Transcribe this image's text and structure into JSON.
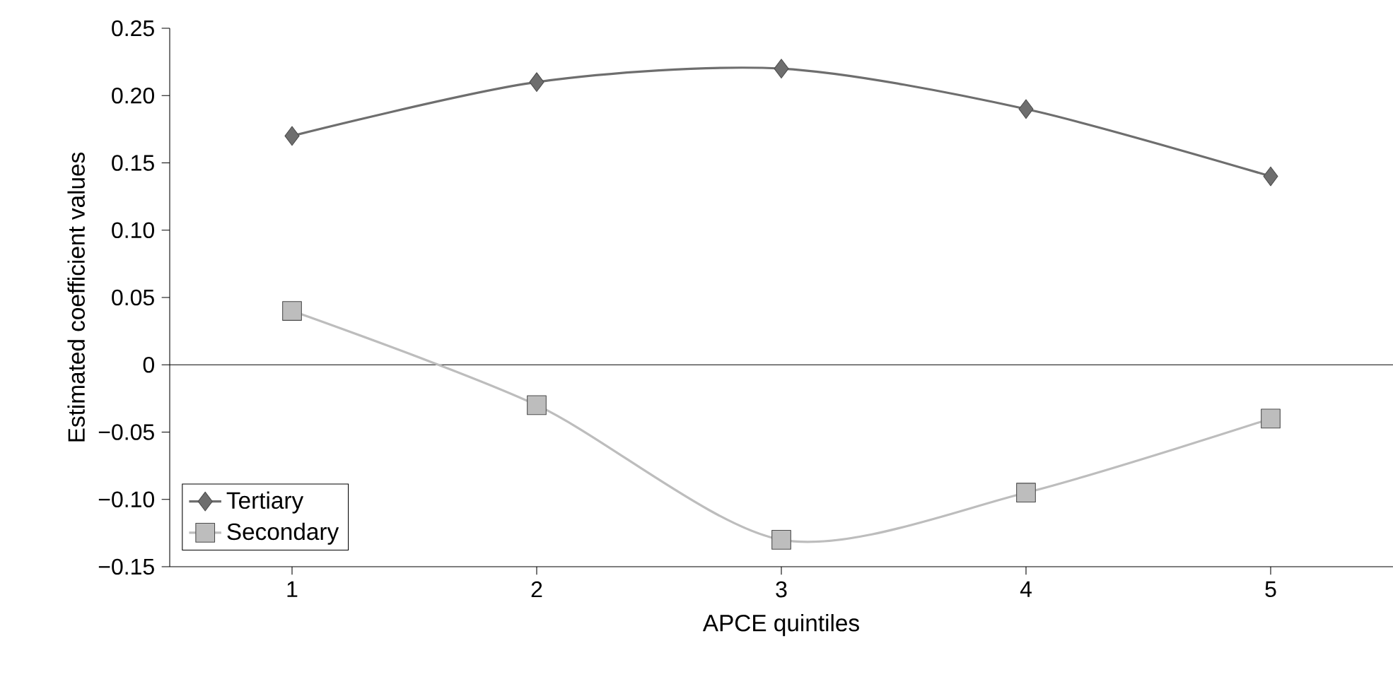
{
  "chart_data": {
    "type": "line",
    "xlabel": "APCE quintiles",
    "ylabel": "Estimated coefficient values",
    "x": [
      1,
      2,
      3,
      4,
      5
    ],
    "series": [
      {
        "name": "Tertiary",
        "color": "#6e6e6e",
        "marker": "diamond",
        "values": [
          0.17,
          0.21,
          0.22,
          0.19,
          0.14
        ]
      },
      {
        "name": "Secondary",
        "color": "#bdbdbd",
        "marker": "square",
        "values": [
          0.04,
          -0.03,
          -0.13,
          -0.095,
          -0.04
        ]
      }
    ],
    "xlim": [
      0.5,
      5.5
    ],
    "xticks": [
      1,
      2,
      3,
      4,
      5
    ],
    "ylim": [
      -0.15,
      0.25
    ],
    "yticks": [
      {
        "value": -0.15,
        "label": "−0.15"
      },
      {
        "value": -0.1,
        "label": "−0.10"
      },
      {
        "value": -0.05,
        "label": "−0.05"
      },
      0,
      0.05,
      {
        "value": 0.1,
        "label": "0.10"
      },
      0.15,
      {
        "value": 0.2,
        "label": "0.20"
      },
      0.25
    ],
    "ref_lines": [
      {
        "axis": "y",
        "value": 0
      }
    ],
    "legend": "bottom left",
    "grid": false
  }
}
